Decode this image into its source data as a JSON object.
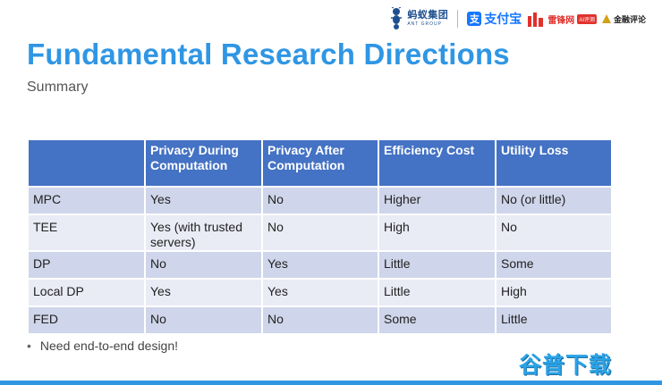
{
  "logos": {
    "ant_cn": "蚂蚁集团",
    "ant_en": "ANT GROUP",
    "alipay_icon_glyph": "支",
    "alipay": "支付宝",
    "leifeng": "雷锋网",
    "leifeng_badge": "AI评测",
    "jinrong": "金融评论"
  },
  "title": "Fundamental Research Directions",
  "subtitle": "Summary",
  "table": {
    "headers": [
      "",
      "Privacy During Computation",
      "Privacy After Computation",
      "Efficiency Cost",
      "Utility Loss"
    ],
    "rows": [
      [
        "MPC",
        "Yes",
        "No",
        "Higher",
        "No (or little)"
      ],
      [
        "TEE",
        "Yes (with trusted servers)",
        "No",
        "High",
        "No"
      ],
      [
        "DP",
        "No",
        "Yes",
        "Little",
        "Some"
      ],
      [
        "Local DP",
        "Yes",
        "Yes",
        "Little",
        "High"
      ],
      [
        "FED",
        "No",
        "No",
        "Some",
        "Little"
      ]
    ]
  },
  "bullet": {
    "dot": "•",
    "text": "Need end-to-end design!"
  },
  "watermark": "谷普下载",
  "colors": {
    "title": "#2f96e4",
    "header_bg": "#4472c4",
    "row_odd": "#cfd5ea",
    "row_even": "#e9ebf5"
  }
}
